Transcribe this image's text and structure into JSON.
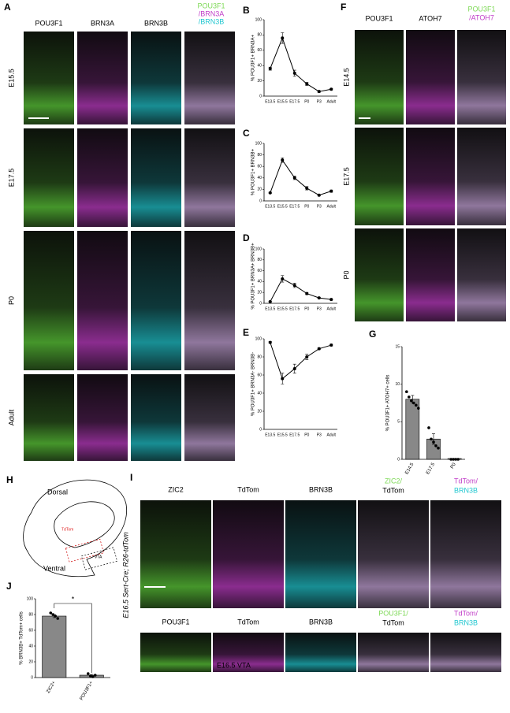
{
  "figure": {
    "A": {
      "letter": "A",
      "columns": [
        "POU3F1",
        "BRN3A",
        "BRN3B"
      ],
      "merge": [
        "POU3F1",
        "/BRN3A",
        "/BRN3B"
      ],
      "rows": [
        "E15.5",
        "E17.5",
        "P0",
        "Adult"
      ]
    },
    "F": {
      "letter": "F",
      "columns": [
        "POU3F1",
        "ATOH7"
      ],
      "merge": [
        "POU3F1",
        "/ATOH7"
      ],
      "rows": [
        "E14.5",
        "E17.5",
        "P0"
      ]
    },
    "H": {
      "letter": "H",
      "labels": [
        "Dorsal",
        "TdTom",
        "Ventral",
        "VTA"
      ]
    },
    "I": {
      "letter": "I",
      "side_label": "E16.5 Sert-Cre; R26-tdTom",
      "row1": [
        "ZIC2",
        "TdTom",
        "BRN3B"
      ],
      "row1_merge": [
        [
          "ZIC2/",
          "TdTom"
        ],
        [
          "TdTom/",
          "BRN3B"
        ]
      ],
      "row2": [
        "POU3F1",
        "TdTom",
        "BRN3B"
      ],
      "row2_merge": [
        [
          "POU3F1/",
          "TdTom"
        ],
        [
          "TdTom/",
          "BRN3B"
        ]
      ],
      "watermark": "E16.5 VTA"
    }
  },
  "chart_data": [
    {
      "type": "line",
      "label": "B",
      "y_label": "% POU3F1+ BRN3A+",
      "categories": [
        "E13.5",
        "E15.5",
        "E17.5",
        "P0",
        "P3",
        "Adult"
      ],
      "values": [
        36,
        76,
        30,
        16,
        6,
        9
      ],
      "errors": [
        2,
        7,
        4,
        2,
        1,
        1
      ],
      "ylim": [
        0,
        100
      ],
      "yticks": [
        0,
        20,
        40,
        60,
        80,
        100
      ],
      "color": "#000000"
    },
    {
      "type": "line",
      "label": "C",
      "y_label": "% POU3F1+ BRN3B+",
      "categories": [
        "E13.5",
        "E15.5",
        "E17.5",
        "P0",
        "P3",
        "Adult"
      ],
      "values": [
        14,
        71,
        40,
        22,
        10,
        17
      ],
      "errors": [
        1,
        4,
        3,
        3,
        1,
        2
      ],
      "ylim": [
        0,
        100
      ],
      "yticks": [
        0,
        20,
        40,
        60,
        80,
        100
      ],
      "color": "#000000"
    },
    {
      "type": "line",
      "label": "D",
      "y_label": "% POU3F1+ BRN3A+ BRN3B+",
      "categories": [
        "E13.5",
        "E15.5",
        "E17.5",
        "P0",
        "P3",
        "Adult"
      ],
      "values": [
        3,
        45,
        33,
        18,
        10,
        7
      ],
      "errors": [
        1,
        6,
        4,
        2,
        1,
        1
      ],
      "ylim": [
        0,
        100
      ],
      "yticks": [
        0,
        20,
        40,
        60,
        80,
        100
      ],
      "color": "#000000"
    },
    {
      "type": "line",
      "label": "E",
      "y_label": "% POU3F1+ BRN3A- BRN3B-",
      "categories": [
        "E13.5",
        "E15.5",
        "E17.5",
        "P0",
        "P3",
        "Adult"
      ],
      "values": [
        96,
        56,
        67,
        80,
        89,
        93
      ],
      "errors": [
        1,
        6,
        5,
        3,
        1,
        1
      ],
      "ylim": [
        0,
        100
      ],
      "yticks": [
        0,
        20,
        40,
        60,
        80,
        100
      ],
      "color": "#000000"
    },
    {
      "type": "bar",
      "label": "G",
      "y_label": "% POU3F1+ ATOH7+ cells",
      "categories": [
        "E14.5",
        "E17.5",
        "P0"
      ],
      "values": [
        8,
        2.7,
        0.1
      ],
      "errors": [
        0.5,
        0.7,
        0
      ],
      "points": [
        [
          9,
          8.3,
          7.8,
          7.5,
          7.2,
          6.8
        ],
        [
          4.2,
          2.7,
          2.3,
          1.8,
          1.5
        ],
        [
          0,
          0,
          0,
          0
        ]
      ],
      "ylim": [
        0,
        15
      ],
      "yticks": [
        0,
        5,
        10,
        15
      ],
      "color": "#888888"
    },
    {
      "type": "bar",
      "label": "J",
      "y_label": "% BRN3B+ TdTom+ cells",
      "categories": [
        "ZIC2+",
        "POU3F1+"
      ],
      "values": [
        78,
        3
      ],
      "errors": [
        2,
        1
      ],
      "points": [
        [
          82,
          80,
          78,
          75
        ],
        [
          5,
          2,
          1,
          3
        ]
      ],
      "ylim": [
        0,
        100
      ],
      "yticks": [
        0,
        20,
        40,
        60,
        80,
        100
      ],
      "annotation": "*",
      "color": "#888888"
    }
  ]
}
